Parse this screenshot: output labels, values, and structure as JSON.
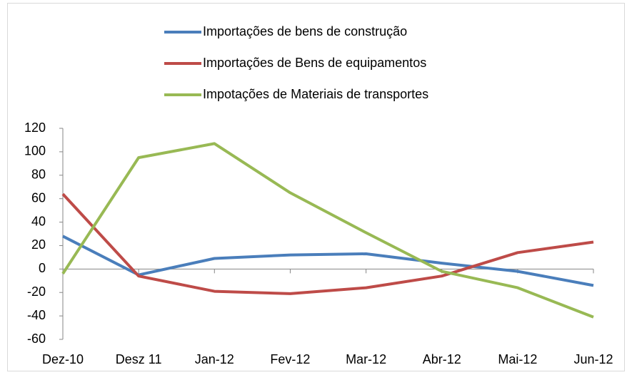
{
  "chart_data": {
    "type": "line",
    "categories": [
      "Dez-10",
      "Desz 11",
      "Jan-12",
      "Fev-12",
      "Mar-12",
      "Abr-12",
      "Mai-12",
      "Jun-12"
    ],
    "series": [
      {
        "name": "Importações de bens de construção",
        "color": "#4a7ebb",
        "values": [
          28,
          -5,
          9,
          12,
          13,
          5,
          -2,
          -14
        ]
      },
      {
        "name": "Importações de Bens de equipamentos",
        "color": "#be4b48",
        "values": [
          64,
          -6,
          -19,
          -21,
          -16,
          -6,
          14,
          23
        ]
      },
      {
        "name": "Impotações de Materiais de transportes",
        "color": "#98b954",
        "values": [
          -4,
          95,
          107,
          65,
          31,
          -2,
          -16,
          -41
        ]
      }
    ],
    "ylim": [
      -60,
      120
    ],
    "yticks": [
      -60,
      -40,
      -20,
      0,
      20,
      40,
      60,
      80,
      100,
      120
    ],
    "grid": false,
    "legend": "top"
  }
}
